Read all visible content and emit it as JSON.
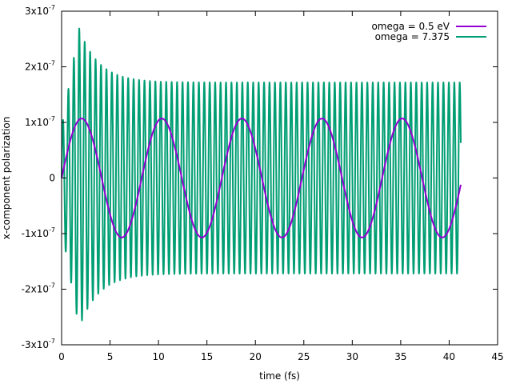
{
  "chart_data": {
    "type": "line",
    "title": "",
    "xlabel": "time (fs)",
    "ylabel": "x-component polarization",
    "xlim": [
      0,
      45
    ],
    "ylim": [
      -3e-07,
      3e-07
    ],
    "grid": false,
    "legend_position": "top-right",
    "x_ticks": [
      {
        "value": 0,
        "label": "0"
      },
      {
        "value": 5,
        "label": "5"
      },
      {
        "value": 10,
        "label": "10"
      },
      {
        "value": 15,
        "label": "15"
      },
      {
        "value": 20,
        "label": "20"
      },
      {
        "value": 25,
        "label": "25"
      },
      {
        "value": 30,
        "label": "30"
      },
      {
        "value": 35,
        "label": "35"
      },
      {
        "value": 40,
        "label": "40"
      },
      {
        "value": 45,
        "label": "45"
      }
    ],
    "y_ticks": [
      {
        "value": 3e-07,
        "mant": "3x10",
        "exp": "-7"
      },
      {
        "value": 2e-07,
        "mant": "2x10",
        "exp": "-7"
      },
      {
        "value": 1e-07,
        "mant": "1x10",
        "exp": "-7"
      },
      {
        "value": 0,
        "mant": "0",
        "exp": ""
      },
      {
        "value": -1e-07,
        "mant": "-1x10",
        "exp": "-7"
      },
      {
        "value": -2e-07,
        "mant": "-2x10",
        "exp": "-7"
      },
      {
        "value": -3e-07,
        "mant": "-3x10",
        "exp": "-7"
      }
    ],
    "series": [
      {
        "name": "omega = 0.5 eV",
        "color": "#9400d3",
        "x_range": [
          0,
          41.2
        ],
        "amplitude": 1.07e-07,
        "period_fs": 8.27,
        "form": "sine"
      },
      {
        "name": "omega = 7.375",
        "color": "#009e73",
        "x_range": [
          0,
          41.2
        ],
        "period_fs": 0.561,
        "form": "sine-with-transient",
        "steady_amplitude": 1.72e-07,
        "peak_amplitude": 2.7e-07,
        "peak_time_fs": 1.8,
        "end_value": 4.4e-08
      }
    ]
  }
}
